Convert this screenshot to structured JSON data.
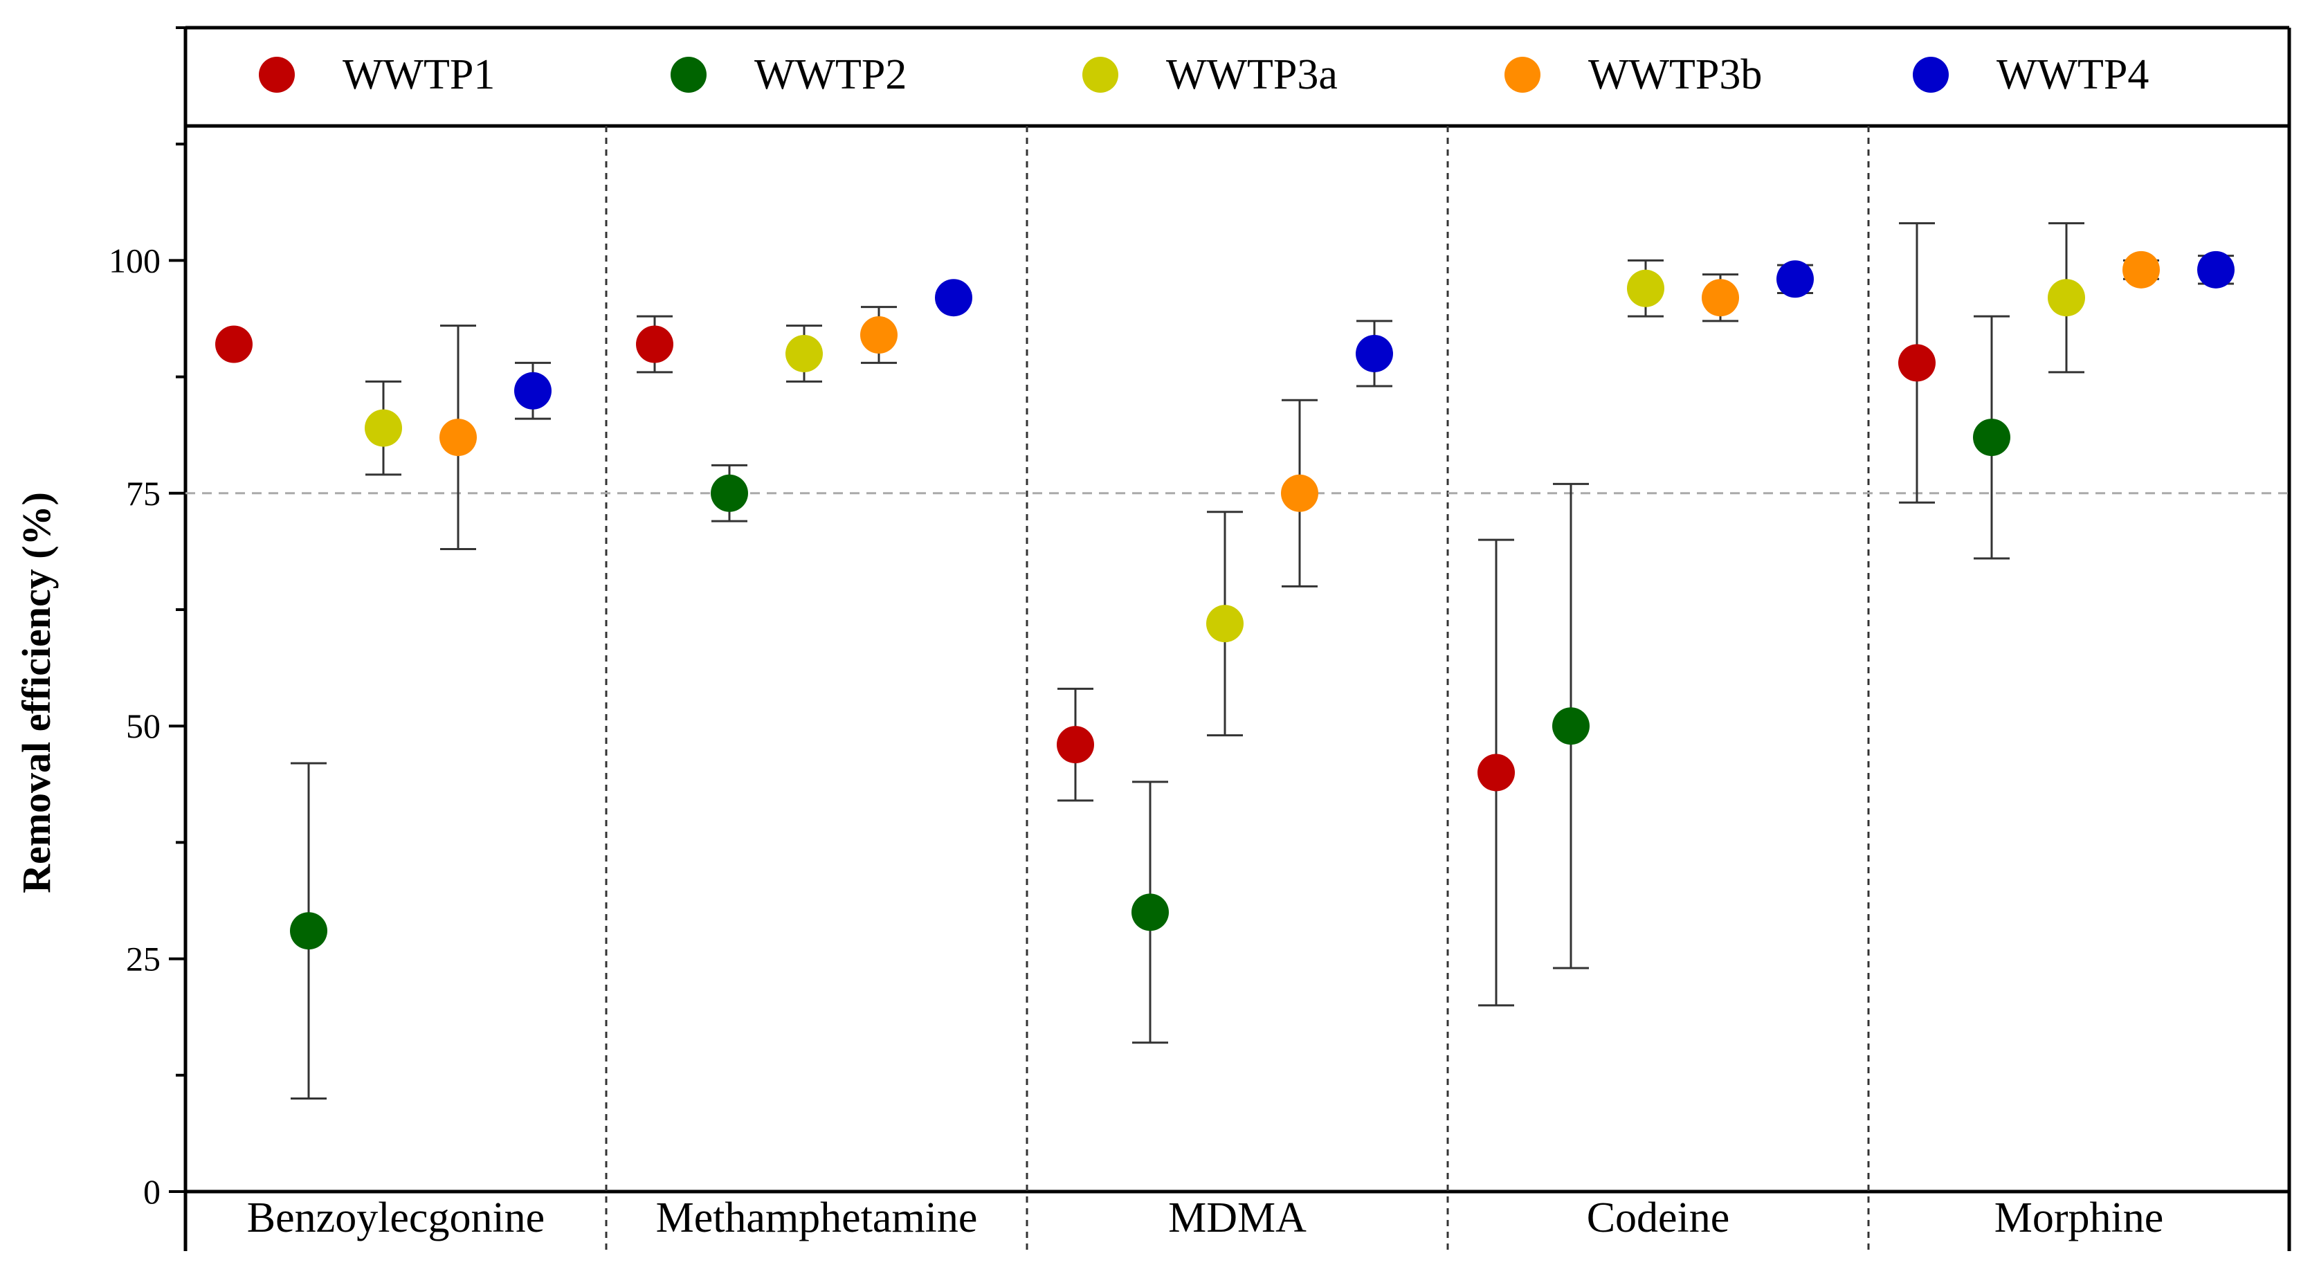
{
  "chart_data": {
    "type": "scatter",
    "title": "",
    "xlabel": "",
    "ylabel": "Removal efficiency (%)",
    "ylim": [
      0,
      125
    ],
    "yticks": [
      0,
      25,
      50,
      75,
      100
    ],
    "y_minor_step": 12.5,
    "reference_line": 75,
    "grid": false,
    "legend_position": "top",
    "categories": [
      "Benzoylecgonine",
      "Methamphetamine",
      "MDMA",
      "Codeine",
      "Morphine"
    ],
    "series": [
      {
        "name": "WWTP1",
        "color": "#c00000",
        "values": [
          91,
          91,
          48,
          45,
          89
        ],
        "err_low": [
          91,
          88,
          42,
          20,
          74
        ],
        "err_high": [
          91,
          94,
          54,
          70,
          104
        ]
      },
      {
        "name": "WWTP2",
        "color": "#006400",
        "values": [
          28,
          75,
          30,
          50,
          81
        ],
        "err_low": [
          10,
          72,
          16,
          24,
          68
        ],
        "err_high": [
          46,
          78,
          44,
          76,
          94
        ]
      },
      {
        "name": "WWTP3a",
        "color": "#cccc00",
        "values": [
          82,
          90,
          61,
          97,
          96
        ],
        "err_low": [
          77,
          87,
          49,
          94,
          88
        ],
        "err_high": [
          87,
          93,
          73,
          100,
          104
        ]
      },
      {
        "name": "WWTP3b",
        "color": "#ff8c00",
        "values": [
          81,
          92,
          75,
          96,
          99
        ],
        "err_low": [
          69,
          89,
          65,
          93.5,
          98
        ],
        "err_high": [
          93,
          95,
          85,
          98.5,
          100
        ]
      },
      {
        "name": "WWTP4",
        "color": "#0000cc",
        "values": [
          86,
          96,
          90,
          98,
          99
        ],
        "err_low": [
          83,
          95.5,
          86.5,
          96.5,
          97.5
        ],
        "err_high": [
          89,
          96.5,
          93.5,
          99.5,
          100.5
        ]
      }
    ]
  }
}
